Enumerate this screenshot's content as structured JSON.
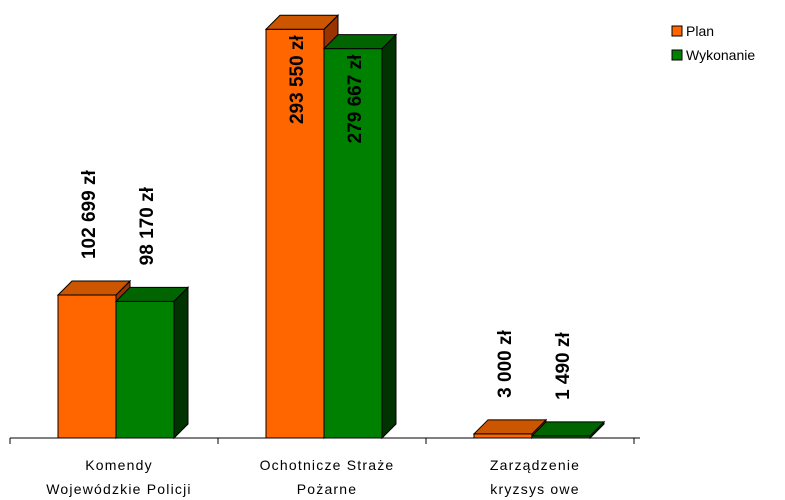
{
  "chart_data": {
    "type": "bar",
    "categories": [
      [
        "Komendy",
        "Wojewódzkie Policji"
      ],
      [
        "Ochotnicze Straże",
        "Pożarne"
      ],
      [
        "Zarządzenie",
        "kryzsys owe"
      ]
    ],
    "series": [
      {
        "name": "Plan",
        "values": [
          102699,
          293550,
          3000
        ],
        "labels": [
          "102 699 zł",
          "293 550 zł",
          "3 000 zł"
        ],
        "color": "#ff6600",
        "top_color": "#cc5500",
        "side_color": "#993300"
      },
      {
        "name": "Wykonanie",
        "values": [
          98170,
          279667,
          1490
        ],
        "labels": [
          "98 170 zł",
          "279 667 zł",
          "1 490 zł"
        ],
        "color": "#008000",
        "top_color": "#006400",
        "side_color": "#003300"
      }
    ],
    "ylim": [
      0,
      300000
    ],
    "grid": false,
    "legend_position": "top-right",
    "three_d": true
  }
}
